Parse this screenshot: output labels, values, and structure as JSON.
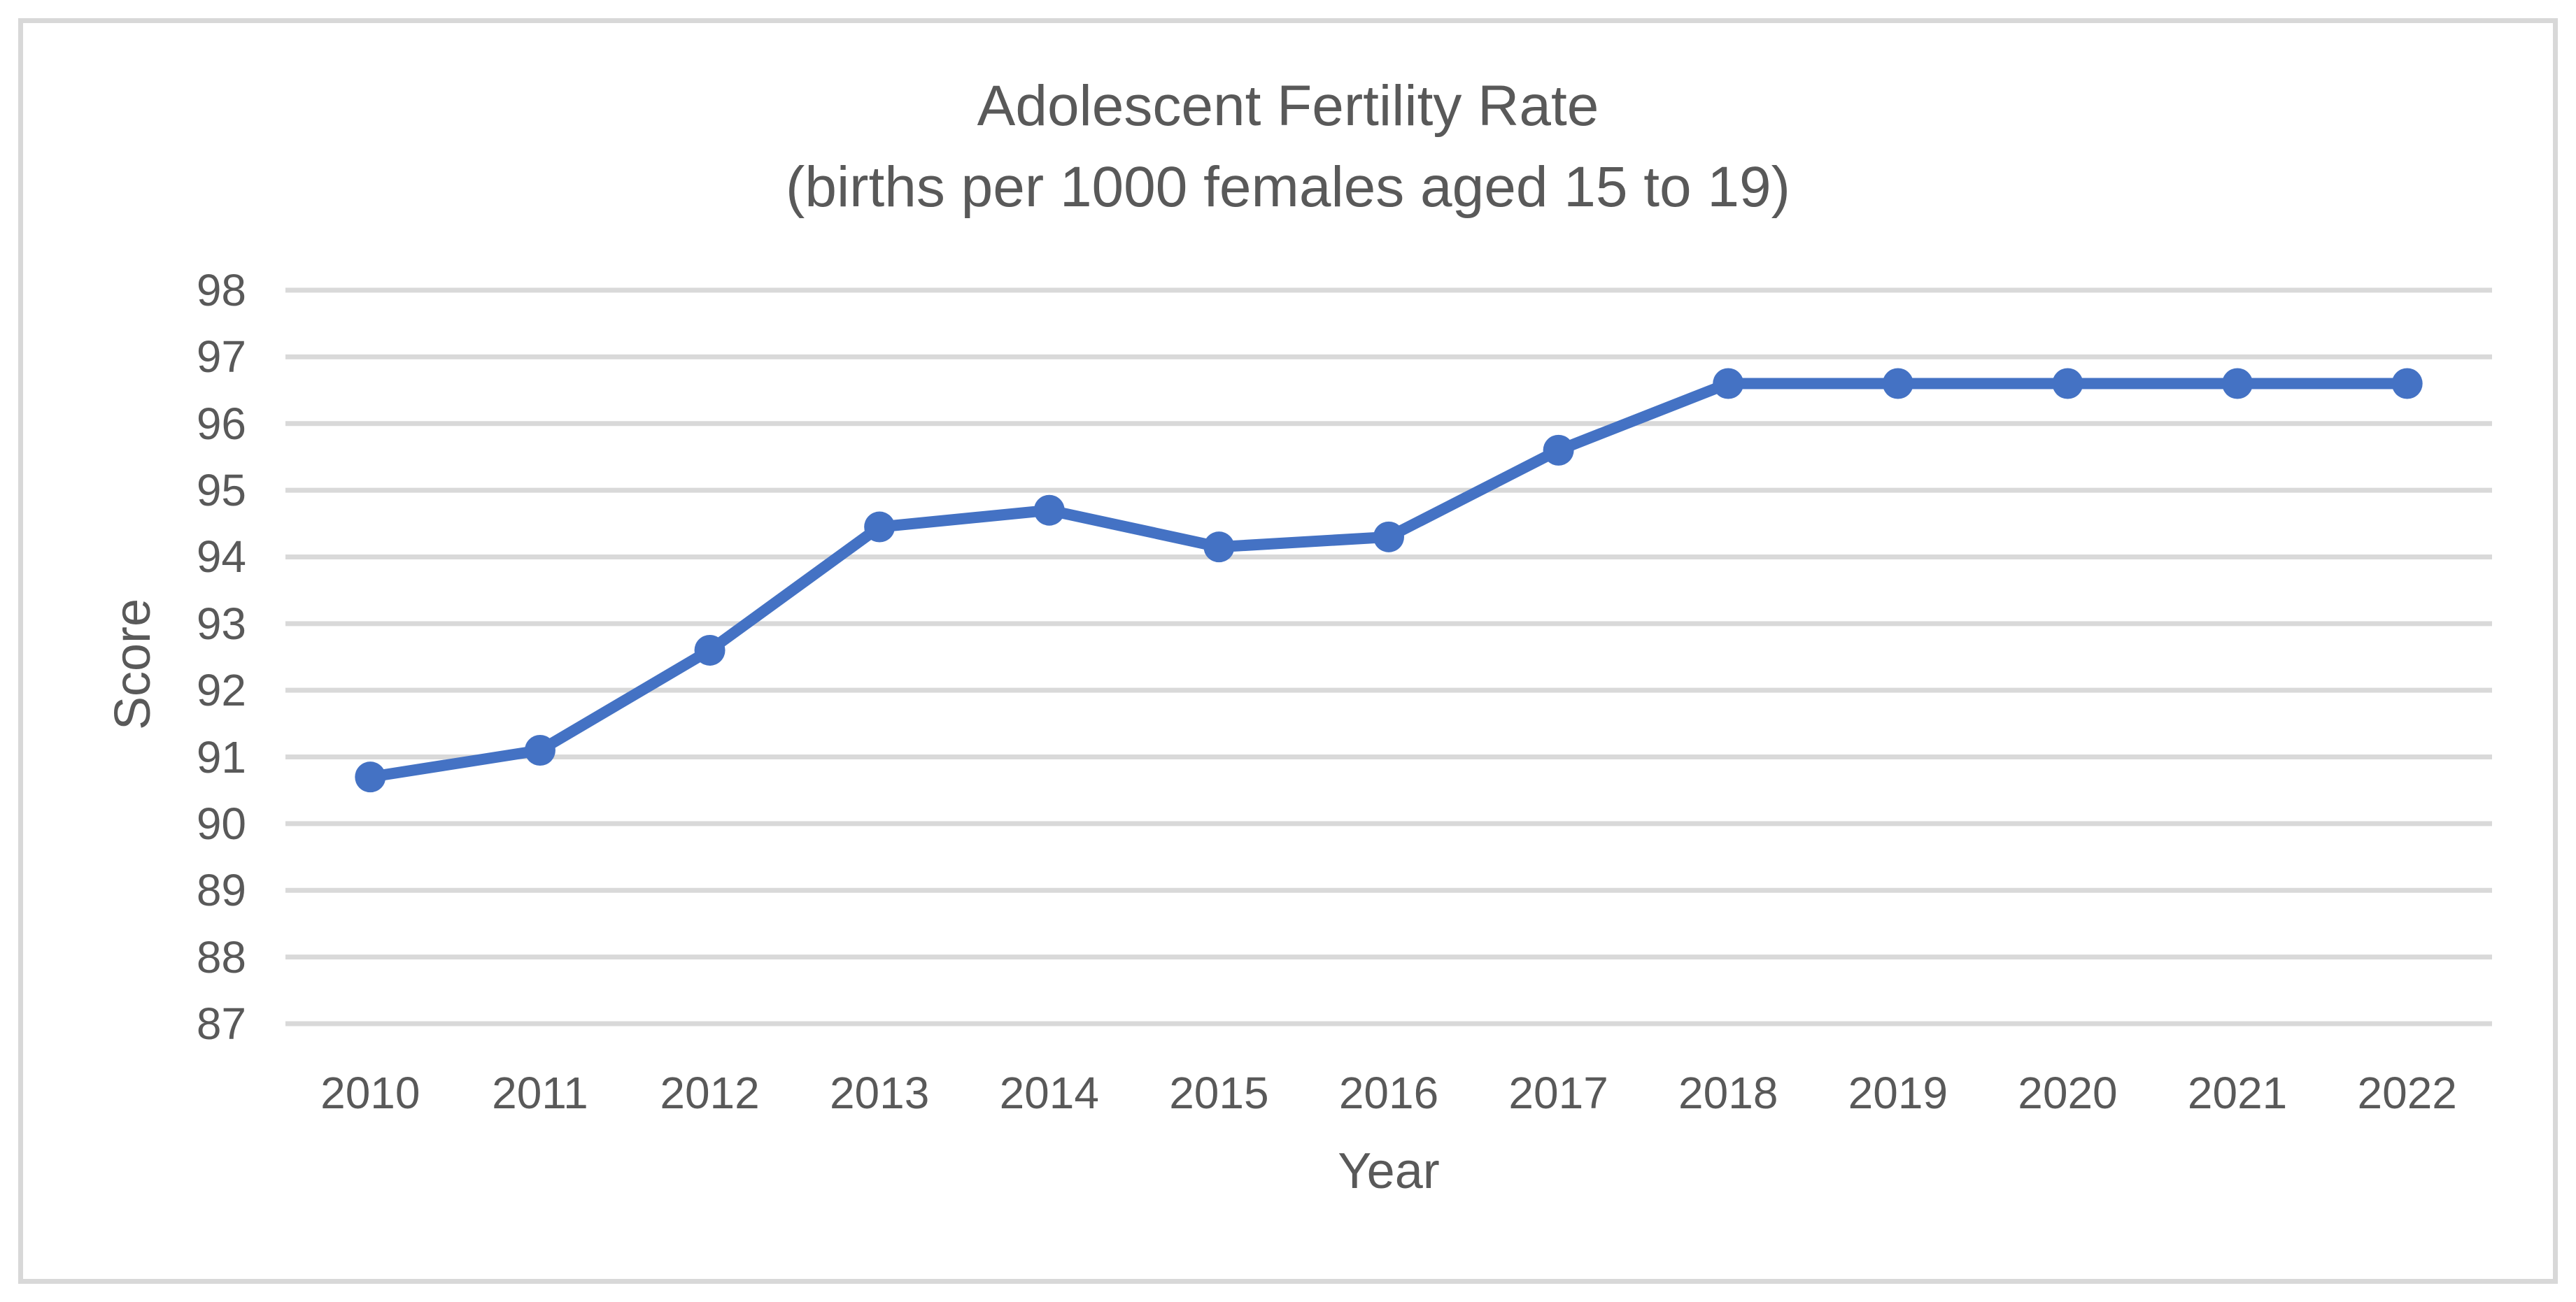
{
  "chart_data": {
    "type": "line",
    "title": "Adolescent Fertility Rate",
    "subtitle": "(births per 1000 females aged 15 to 19)",
    "xlabel": "Year",
    "ylabel": "Score",
    "categories": [
      "2010",
      "2011",
      "2012",
      "2013",
      "2014",
      "2015",
      "2016",
      "2017",
      "2018",
      "2019",
      "2020",
      "2021",
      "2022"
    ],
    "values": [
      90.7,
      91.1,
      92.6,
      94.45,
      94.7,
      94.15,
      94.3,
      95.6,
      96.6,
      96.6,
      96.6,
      96.6,
      96.6
    ],
    "ylim": [
      87,
      98
    ],
    "y_ticks": [
      98,
      97,
      96,
      95,
      94,
      93,
      92,
      91,
      90,
      89,
      88,
      87
    ],
    "grid": "horizontal",
    "legend": "none",
    "line_color": "#4472C4",
    "marker": "circle",
    "grid_color": "#d9d9d9",
    "text_color": "#595959",
    "frame_color": "#d8d8d8"
  }
}
